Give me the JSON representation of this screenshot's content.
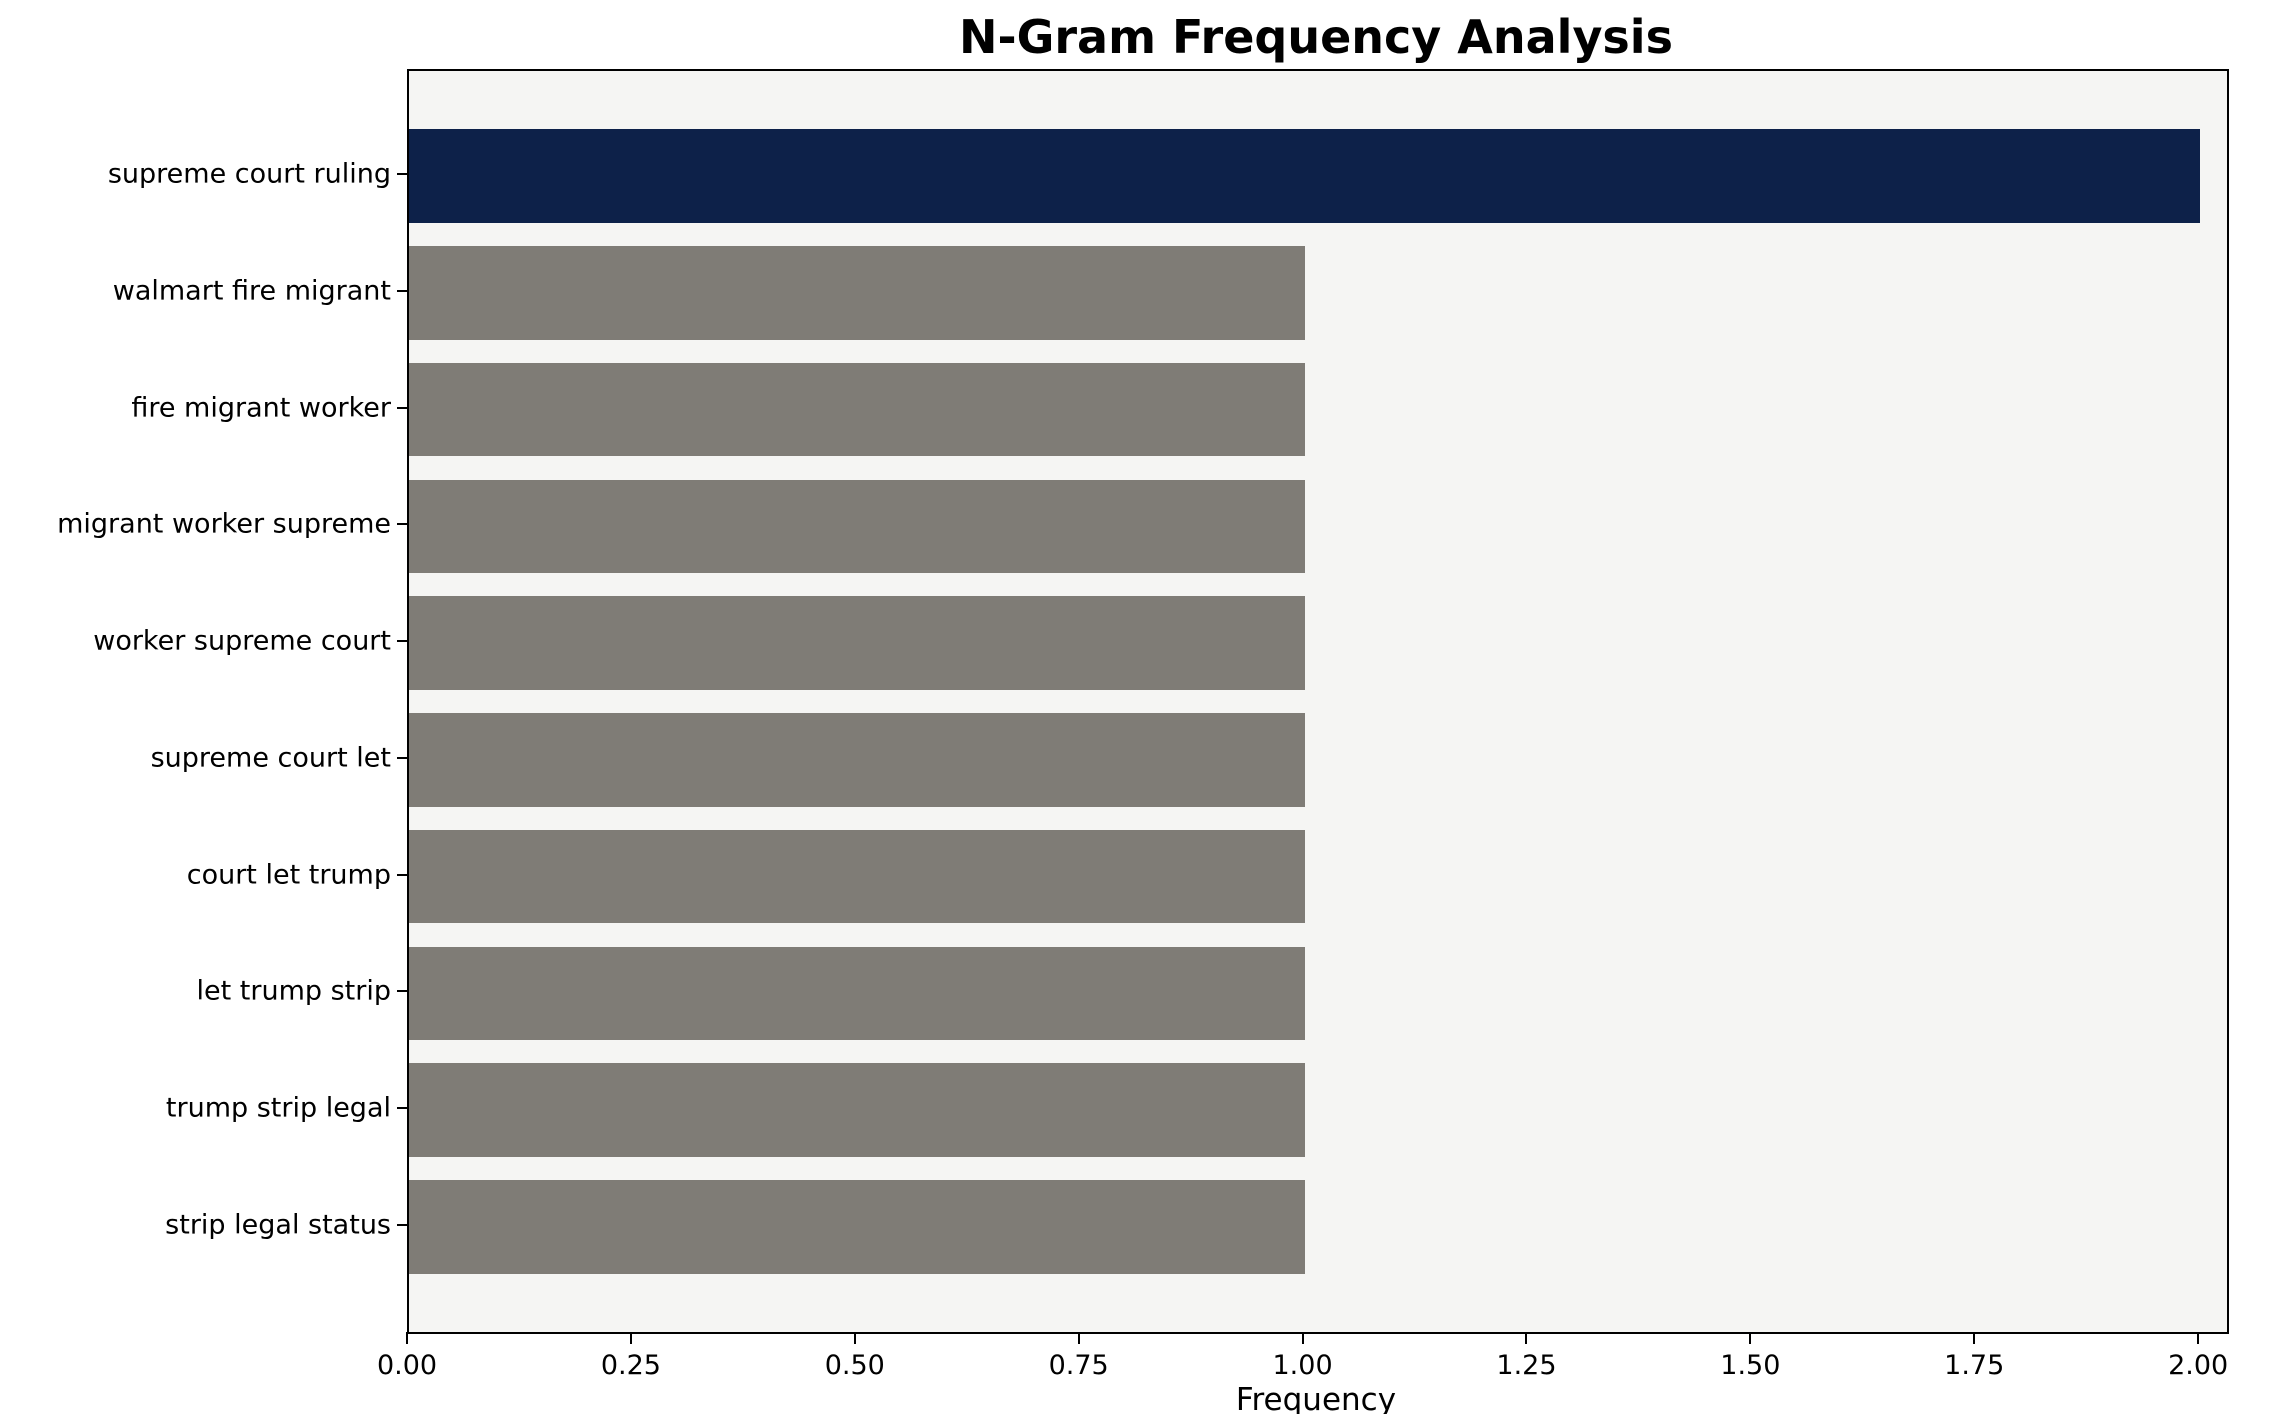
{
  "chart_data": {
    "type": "bar",
    "orientation": "horizontal",
    "title": "N-Gram Frequency Analysis",
    "xlabel": "Frequency",
    "ylabel": "",
    "categories": [
      "supreme court ruling",
      "walmart fire migrant",
      "fire migrant worker",
      "migrant worker supreme",
      "worker supreme court",
      "supreme court let",
      "court let trump",
      "let trump strip",
      "trump strip legal",
      "strip legal status"
    ],
    "values": [
      2,
      1,
      1,
      1,
      1,
      1,
      1,
      1,
      1,
      1
    ],
    "bar_colors": [
      "#0d2149",
      "#7f7c76",
      "#7f7c76",
      "#7f7c76",
      "#7f7c76",
      "#7f7c76",
      "#7f7c76",
      "#7f7c76",
      "#7f7c76",
      "#7f7c76"
    ],
    "xlim": [
      0,
      2.03
    ],
    "x_ticks": [
      0.0,
      0.25,
      0.5,
      0.75,
      1.0,
      1.25,
      1.5,
      1.75,
      2.0
    ],
    "x_tick_labels": [
      "0.00",
      "0.25",
      "0.50",
      "0.75",
      "1.00",
      "1.25",
      "1.50",
      "1.75",
      "2.00"
    ],
    "grid": false,
    "legend": null,
    "colors": {
      "highlight_bar": "#0d2149",
      "default_bar": "#7f7c76",
      "plot_bg": "#f5f5f3",
      "figure_bg": "#ffffff",
      "spine": "#000000"
    }
  }
}
